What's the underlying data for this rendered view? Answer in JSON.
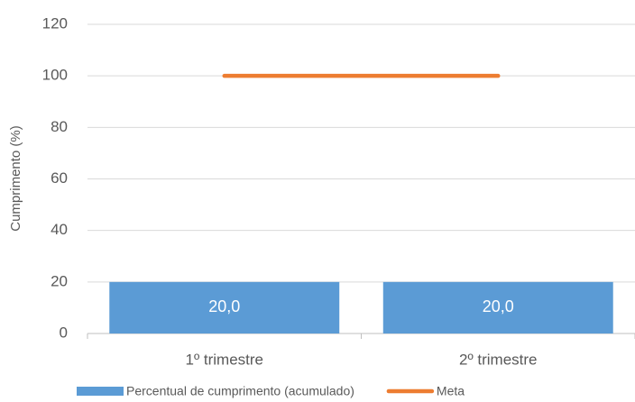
{
  "chart_data": {
    "type": "bar",
    "categories": [
      "1º trimestre",
      "2º trimestre"
    ],
    "series": [
      {
        "name": "Percentual de cumprimento (acumulado)",
        "type": "bar",
        "color": "#5b9bd5",
        "values": [
          20,
          20
        ],
        "value_labels": [
          "20,0",
          "20,0"
        ]
      },
      {
        "name": "Meta",
        "type": "line",
        "color": "#ed7d31",
        "values": [
          100,
          100
        ]
      }
    ],
    "ylabel": "Cumprimento (%)",
    "ylim": [
      0,
      120
    ],
    "yticks": [
      0,
      20,
      40,
      60,
      80,
      100,
      120
    ],
    "grid": true,
    "legend": "bottom"
  }
}
